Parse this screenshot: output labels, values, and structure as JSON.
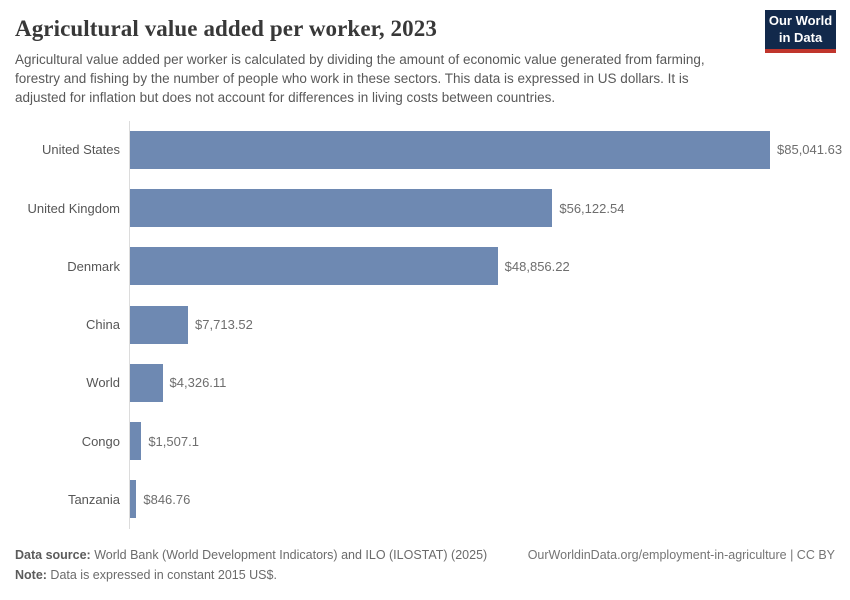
{
  "header": {
    "title": "Agricultural value added per worker, 2023",
    "subtitle": "Agricultural value added per worker is calculated by dividing the amount of economic value generated from farming, forestry and fishing by the number of people who work in these sectors. This data is expressed in US dollars. It is adjusted for inflation but does not account for differences in living costs between countries."
  },
  "logo": {
    "line1": "Our World",
    "line2": "in Data"
  },
  "chart_data": {
    "type": "bar",
    "orientation": "horizontal",
    "title": "Agricultural value added per worker, 2023",
    "categories": [
      "United States",
      "United Kingdom",
      "Denmark",
      "China",
      "World",
      "Congo",
      "Tanzania"
    ],
    "values": [
      85041.63,
      56122.54,
      48856.22,
      7713.52,
      4326.11,
      1507.1,
      846.76
    ],
    "value_labels": [
      "$85,041.63",
      "$56,122.54",
      "$48,856.22",
      "$7,713.52",
      "$4,326.11",
      "$1,507.1",
      "$846.76"
    ],
    "xlabel": "",
    "ylabel": "",
    "xlim": [
      0,
      85041.63
    ],
    "grid": false,
    "legend": false,
    "bar_color": "#6e89b2",
    "unit": "constant 2015 US$"
  },
  "colors": {
    "bar": "#6e89b2",
    "logo_navy": "#12294b",
    "logo_red": "#c0352c",
    "axis": "#dcdcdc"
  },
  "footer": {
    "source_label": "Data source:",
    "source_text": " World Bank (World Development Indicators) and ILO (ILOSTAT) (2025)",
    "link_text": "OurWorldinData.org/employment-in-agriculture | CC BY",
    "note_label": "Note:",
    "note_text": " Data is expressed in constant 2015 US$."
  }
}
